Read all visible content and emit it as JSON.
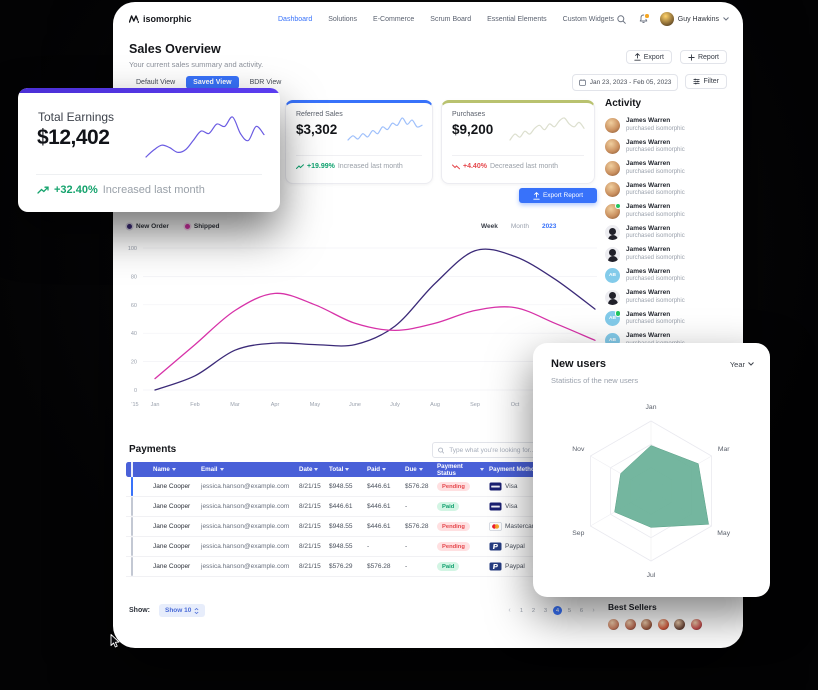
{
  "nav": {
    "brand": "isomorphic",
    "items": [
      {
        "label": "Dashboard",
        "active": true
      },
      {
        "label": "Solutions",
        "active": false
      },
      {
        "label": "E-Commerce",
        "active": false
      },
      {
        "label": "Scrum Board",
        "active": false
      },
      {
        "label": "Essential Elements",
        "active": false
      },
      {
        "label": "Custom Widgets",
        "active": false
      }
    ],
    "user_name": "Guy Hawkins"
  },
  "page": {
    "title": "Sales Overview",
    "subtitle": "Your current sales summary and activity.",
    "export_label": "Export",
    "report_label": "Report",
    "tabs": [
      {
        "label": "Default View",
        "active": false
      },
      {
        "label": "Saved View",
        "active": true
      },
      {
        "label": "BDR View",
        "active": false
      }
    ],
    "date_range": "Jan 23, 2023 - Feb 05, 2023",
    "filter_label": "Filter",
    "export_report_label": "Export Report"
  },
  "stats": [
    {
      "label": "Total Earnings",
      "value": "$12,402",
      "change": "+32.40%",
      "change_text": "Increased last month",
      "trend": "up",
      "accent": "#4b2fd6"
    },
    {
      "label": "Referred Sales",
      "value": "$3,302",
      "change": "+19.99%",
      "change_text": "Increased last month",
      "trend": "up",
      "accent": "#3872fa"
    },
    {
      "label": "Purchases",
      "value": "$9,200",
      "change": "+4.40%",
      "change_text": "Decreased last month",
      "trend": "down",
      "accent": "#b9c26f"
    }
  ],
  "chart_data": [
    {
      "id": "sales-trend",
      "type": "line",
      "title": "Sales Overview trend",
      "first_tick": "'15",
      "x": [
        "Jan",
        "Feb",
        "Mar",
        "Apr",
        "May",
        "June",
        "July",
        "Aug",
        "Sep",
        "Oct",
        "Nov",
        "Dec"
      ],
      "series": [
        {
          "name": "New Order",
          "color": "#3b2a78",
          "values": [
            0,
            10,
            28,
            33,
            32,
            32,
            45,
            75,
            98,
            94,
            78,
            57
          ]
        },
        {
          "name": "Shipped",
          "color": "#d732a8",
          "values": [
            8,
            32,
            56,
            68,
            60,
            47,
            42,
            47,
            56,
            58,
            47,
            35
          ]
        }
      ],
      "ylim": [
        0,
        100
      ],
      "yticks": [
        0,
        20,
        40,
        60,
        80,
        100
      ],
      "grid": true,
      "legend_position": "top-left",
      "period_options": [
        "Week",
        "Month",
        "2023"
      ],
      "period_selected": "2023"
    },
    {
      "id": "spark-total",
      "type": "line",
      "title": "Total Earnings sparkline",
      "color": "#6a5be2",
      "values": [
        28,
        34,
        38,
        36,
        32,
        34,
        42,
        50,
        48,
        56,
        54,
        62,
        48,
        42,
        54,
        47
      ]
    },
    {
      "id": "spark-referred",
      "type": "line",
      "title": "Referred Sales sparkline",
      "color": "#9fc0fb",
      "values": [
        30,
        38,
        32,
        42,
        36,
        48,
        42,
        55,
        50,
        62,
        58,
        72,
        60,
        68,
        55,
        58
      ]
    },
    {
      "id": "spark-purchases",
      "type": "line",
      "title": "Purchases sparkline",
      "color": "#dcdfce",
      "values": [
        40,
        48,
        44,
        52,
        48,
        56,
        60,
        54,
        62,
        58,
        66,
        70,
        62,
        58,
        64,
        56
      ]
    },
    {
      "id": "new-users-radar",
      "type": "radar",
      "title": "New users",
      "categories": [
        "Jan",
        "Mar",
        "May",
        "Jul",
        "Sep",
        "Nov"
      ],
      "values": [
        65,
        78,
        95,
        52,
        60,
        50
      ],
      "max": 100,
      "fill": "#68b097"
    }
  ],
  "activity": {
    "title": "Activity",
    "items": [
      {
        "name": "James Warren",
        "action": "purchased isomorphic",
        "avatar": "photo",
        "online": false
      },
      {
        "name": "James Warren",
        "action": "purchased isomorphic",
        "avatar": "photo",
        "online": false
      },
      {
        "name": "James Warren",
        "action": "purchased isomorphic",
        "avatar": "photo",
        "online": false
      },
      {
        "name": "James Warren",
        "action": "purchased isomorphic",
        "avatar": "photo",
        "online": false
      },
      {
        "name": "James Warren",
        "action": "purchased isomorphic",
        "avatar": "photo",
        "online": true
      },
      {
        "name": "James Warren",
        "action": "purchased isomorphic",
        "avatar": "silhouette",
        "online": false
      },
      {
        "name": "James Warren",
        "action": "purchased isomorphic",
        "avatar": "silhouette",
        "online": false
      },
      {
        "name": "James Warren",
        "action": "purchased isomorphic",
        "avatar": "initials",
        "initials": "AB",
        "online": false
      },
      {
        "name": "James Warren",
        "action": "purchased isomorphic",
        "avatar": "silhouette",
        "online": false
      },
      {
        "name": "James Warren",
        "action": "purchased isomorphic",
        "avatar": "initials",
        "initials": "AB",
        "online": true
      },
      {
        "name": "James Warren",
        "action": "purchased isomorphic",
        "avatar": "initials",
        "initials": "AB",
        "online": false
      }
    ]
  },
  "payments": {
    "title": "Payments",
    "search_placeholder": "Type what you're looking for...",
    "columns": [
      "Name",
      "Email",
      "Date",
      "Total",
      "Paid",
      "Due",
      "Payment Status",
      "Payment Method"
    ],
    "rows": [
      {
        "checked": true,
        "name": "Jane Cooper",
        "email": "jessica.hanson@example.com",
        "date": "8/21/15",
        "total": "$948.55",
        "paid": "$446.61",
        "due": "$576.28",
        "status": "Pending",
        "method": "Visa"
      },
      {
        "checked": false,
        "name": "Jane Cooper",
        "email": "jessica.hanson@example.com",
        "date": "8/21/15",
        "total": "$446.61",
        "paid": "$446.61",
        "due": "-",
        "status": "Paid",
        "method": "Visa"
      },
      {
        "checked": false,
        "name": "Jane Cooper",
        "email": "jessica.hanson@example.com",
        "date": "8/21/15",
        "total": "$948.55",
        "paid": "$446.61",
        "due": "$576.28",
        "status": "Pending",
        "method": "Mastercard"
      },
      {
        "checked": false,
        "name": "Jane Cooper",
        "email": "jessica.hanson@example.com",
        "date": "8/21/15",
        "total": "$948.55",
        "paid": "-",
        "due": "-",
        "status": "Pending",
        "method": "Paypal"
      },
      {
        "checked": false,
        "name": "Jane Cooper",
        "email": "jessica.hanson@example.com",
        "date": "8/21/15",
        "total": "$576.29",
        "paid": "$576.28",
        "due": "-",
        "status": "Paid",
        "method": "Paypal"
      }
    ],
    "show_label": "Show:",
    "show_value": "Show 10",
    "pagination": {
      "pages": [
        "1",
        "2",
        "3",
        "4",
        "5",
        "6"
      ],
      "active": "4"
    }
  },
  "new_users": {
    "title": "New users",
    "subtitle": "Statistics of the new users",
    "period": "Year"
  },
  "best_sellers": {
    "title": "Best Sellers",
    "avatar_colors": [
      "#c77b5e",
      "#b5654f",
      "#9c5a41",
      "#d0583b",
      "#6e4a3c",
      "#c34d4d"
    ]
  },
  "colors": {
    "primary": "#3872fa",
    "table_header": "#4960d8",
    "positive": "#0fa36f",
    "negative": "#e5484d"
  }
}
